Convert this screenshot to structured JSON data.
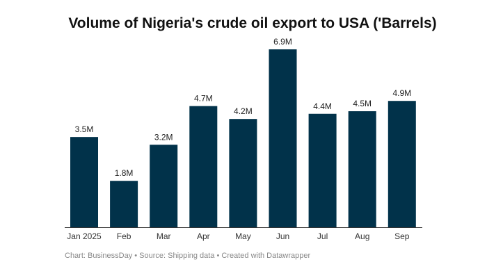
{
  "chart_data": {
    "type": "bar",
    "title": "Volume of Nigeria's crude oil export to USA ('Barrels)",
    "categories": [
      "Jan 2025",
      "Feb",
      "Mar",
      "Apr",
      "May",
      "Jun",
      "Jul",
      "Aug",
      "Sep"
    ],
    "values": [
      3.5,
      1.8,
      3.2,
      4.7,
      4.2,
      6.9,
      4.4,
      4.5,
      4.9
    ],
    "data_labels": [
      "3.5M",
      "1.8M",
      "3.2M",
      "4.7M",
      "4.2M",
      "6.9M",
      "4.4M",
      "4.5M",
      "4.9M"
    ],
    "unit": "M",
    "xlabel": "",
    "ylabel": "",
    "ylim": [
      0,
      6.9
    ],
    "grid": false,
    "bar_color": "#01324a"
  },
  "footer": "Chart: BusinessDay • Source: Shipping data • Created with Datawrapper"
}
